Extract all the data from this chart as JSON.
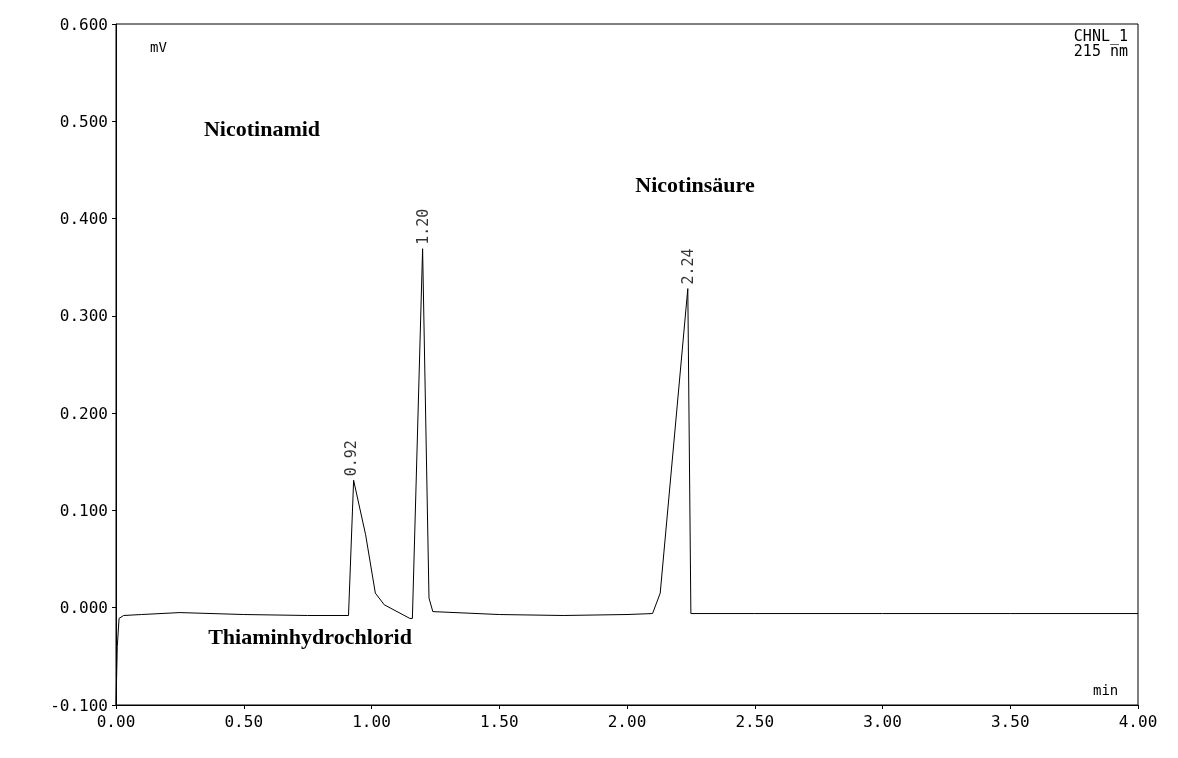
{
  "chart_data": {
    "type": "line",
    "xlabel": "min",
    "ylabel": "mV",
    "x": [
      0,
      0.005,
      0.012,
      0.03,
      0.1,
      0.25,
      0.5,
      0.75,
      0.91,
      0.93,
      0.977,
      1.015,
      1.05,
      1.15,
      1.16,
      1.2,
      1.225,
      1.24,
      1.5,
      1.75,
      2.0,
      2.1,
      2.13,
      2.238,
      2.25,
      2.5,
      3.0,
      3.5,
      4.0
    ],
    "values": [
      -0.1,
      -0.04,
      -0.011,
      -0.008,
      -0.007,
      -0.005,
      -0.007,
      -0.008,
      -0.008,
      0.131,
      0.075,
      0.015,
      0.003,
      -0.011,
      -0.011,
      0.369,
      0.01,
      -0.004,
      -0.007,
      -0.008,
      -0.007,
      -0.006,
      0.015,
      0.328,
      -0.006,
      -0.006,
      -0.006,
      -0.006,
      -0.006
    ],
    "color": "#000000",
    "xlim": [
      0,
      4
    ],
    "ylim": [
      -0.1,
      0.6
    ],
    "xticks": [
      {
        "value": 0,
        "label": "0.00"
      },
      {
        "value": 0.5,
        "label": "0.50"
      },
      {
        "value": 1,
        "label": "1.00"
      },
      {
        "value": 1.5,
        "label": "1.50"
      },
      {
        "value": 2,
        "label": "2.00"
      },
      {
        "value": 2.5,
        "label": "2.50"
      },
      {
        "value": 3,
        "label": "3.00"
      },
      {
        "value": 3.5,
        "label": "3.50"
      },
      {
        "value": 4,
        "label": "4.00"
      }
    ],
    "yticks": [
      {
        "value": -0.1,
        "label": "-0.100"
      },
      {
        "value": 0,
        "label": "0.000"
      },
      {
        "value": 0.1,
        "label": "0.100"
      },
      {
        "value": 0.2,
        "label": "0.200"
      },
      {
        "value": 0.3,
        "label": "0.300"
      },
      {
        "value": 0.4,
        "label": "0.400"
      },
      {
        "value": 0.5,
        "label": "0.500"
      },
      {
        "value": 0.6,
        "label": "0.600"
      }
    ],
    "grid": false,
    "marker": "none",
    "line_style": "solid",
    "annotations": [
      {
        "text": "0.92",
        "x": 0.92,
        "y": 0.131
      },
      {
        "text": "1.20",
        "x": 1.2,
        "y": 0.369
      },
      {
        "text": "2.24",
        "x": 2.24,
        "y": 0.328
      },
      "Nicotinamid",
      "Nicotinsäure",
      "Thiaminhydrochlorid",
      "CHNL_1\n215 nm"
    ]
  }
}
